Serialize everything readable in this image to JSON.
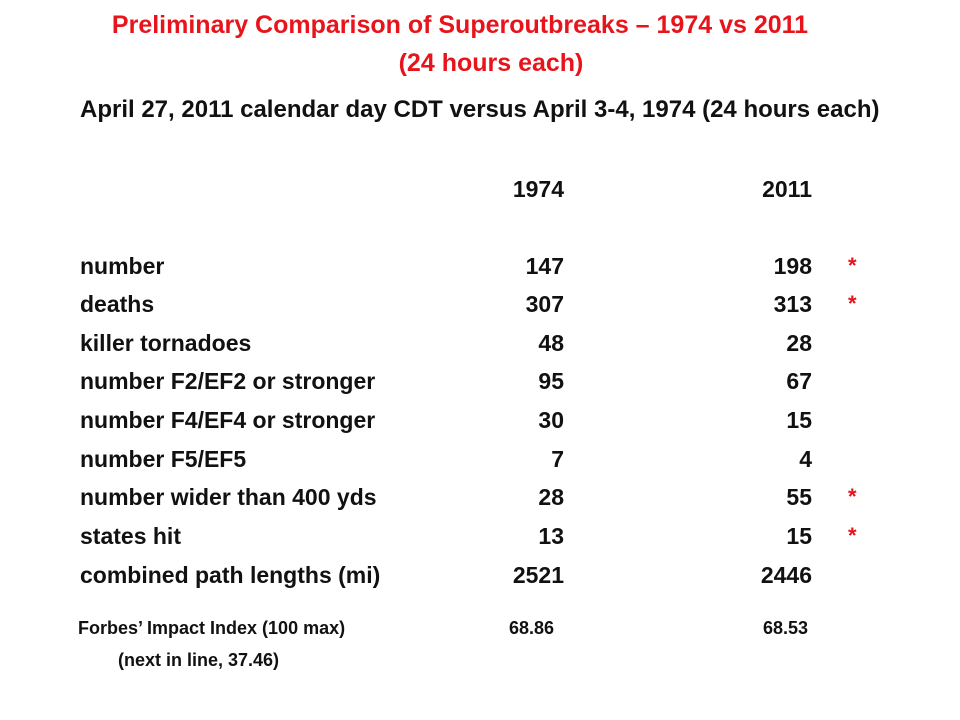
{
  "title": {
    "line1": "Preliminary Comparison of Superoutbreaks – 1974 vs 2011",
    "line2": "(24 hours each)"
  },
  "table": {
    "heading": "April 27, 2011 calendar day CDT versus April 3-4, 1974 (24 hours each)",
    "columns": [
      "1974",
      "2011"
    ],
    "rows": [
      {
        "label": "number",
        "v1974": "147",
        "v2011": "198",
        "mark": "*"
      },
      {
        "label": "deaths",
        "v1974": "307",
        "v2011": "313",
        "mark": "*"
      },
      {
        "label": "killer tornadoes",
        "v1974": "48",
        "v2011": "28",
        "mark": ""
      },
      {
        "label": "number F2/EF2 or stronger",
        "v1974": "95",
        "v2011": "67",
        "mark": ""
      },
      {
        "label": "number F4/EF4 or stronger",
        "v1974": "30",
        "v2011": "15",
        "mark": ""
      },
      {
        "label": "number F5/EF5",
        "v1974": "7",
        "v2011": "4",
        "mark": ""
      },
      {
        "label": "number wider than 400 yds",
        "v1974": "28",
        "v2011": "55",
        "mark": "*"
      },
      {
        "label": "states hit",
        "v1974": "13",
        "v2011": "15",
        "mark": "*"
      },
      {
        "label": "combined path lengths (mi)",
        "v1974": "2521",
        "v2011": "2446",
        "mark": ""
      }
    ]
  },
  "forbes": {
    "label": "Forbes’ Impact Index  (100 max)",
    "v1974": "68.86",
    "v2011": "68.53",
    "note": "(next in line, 37.46)"
  },
  "colors": {
    "title": "#e8141b",
    "asterisk": "#e8141b",
    "text": "#111111"
  }
}
